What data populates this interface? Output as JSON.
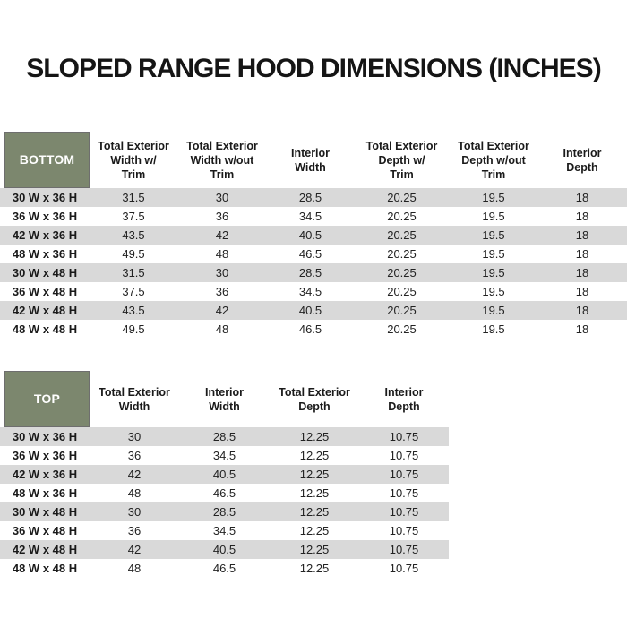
{
  "title": "SLOPED RANGE HOOD DIMENSIONS (INCHES)",
  "colors": {
    "header_green": "#7c876e",
    "header_green_border": "#6e6e6e",
    "header_text": "#ffffff",
    "stripe_gray": "#d9d9d9",
    "row_white": "#ffffff",
    "text_dark": "#1a1a1a"
  },
  "bottom_table": {
    "label": "BOTTOM",
    "columns": [
      "Total Exterior\nWidth w/\nTrim",
      "Total Exterior\nWidth w/out\nTrim",
      "Interior\nWidth",
      "Total Exterior\nDepth w/\nTrim",
      "Total Exterior\nDepth w/out\nTrim",
      "Interior\nDepth"
    ],
    "rows": [
      {
        "label": "30 W x 36 H",
        "values": [
          "31.5",
          "30",
          "28.5",
          "20.25",
          "19.5",
          "18"
        ]
      },
      {
        "label": "36 W x 36 H",
        "values": [
          "37.5",
          "36",
          "34.5",
          "20.25",
          "19.5",
          "18"
        ]
      },
      {
        "label": "42 W x 36 H",
        "values": [
          "43.5",
          "42",
          "40.5",
          "20.25",
          "19.5",
          "18"
        ]
      },
      {
        "label": "48 W x 36 H",
        "values": [
          "49.5",
          "48",
          "46.5",
          "20.25",
          "19.5",
          "18"
        ]
      },
      {
        "label": "30 W x 48 H",
        "values": [
          "31.5",
          "30",
          "28.5",
          "20.25",
          "19.5",
          "18"
        ]
      },
      {
        "label": "36 W x 48 H",
        "values": [
          "37.5",
          "36",
          "34.5",
          "20.25",
          "19.5",
          "18"
        ]
      },
      {
        "label": "42 W x 48 H",
        "values": [
          "43.5",
          "42",
          "40.5",
          "20.25",
          "19.5",
          "18"
        ]
      },
      {
        "label": "48 W x 48 H",
        "values": [
          "49.5",
          "48",
          "46.5",
          "20.25",
          "19.5",
          "18"
        ]
      }
    ]
  },
  "top_table": {
    "label": "TOP",
    "columns": [
      "Total Exterior\nWidth",
      "Interior\nWidth",
      "Total Exterior\nDepth",
      "Interior\nDepth"
    ],
    "rows": [
      {
        "label": "30 W x 36 H",
        "values": [
          "30",
          "28.5",
          "12.25",
          "10.75"
        ]
      },
      {
        "label": "36 W x 36 H",
        "values": [
          "36",
          "34.5",
          "12.25",
          "10.75"
        ]
      },
      {
        "label": "42 W x 36 H",
        "values": [
          "42",
          "40.5",
          "12.25",
          "10.75"
        ]
      },
      {
        "label": "48 W x 36 H",
        "values": [
          "48",
          "46.5",
          "12.25",
          "10.75"
        ]
      },
      {
        "label": "30 W x 48 H",
        "values": [
          "30",
          "28.5",
          "12.25",
          "10.75"
        ]
      },
      {
        "label": "36 W x 48 H",
        "values": [
          "36",
          "34.5",
          "12.25",
          "10.75"
        ]
      },
      {
        "label": "42 W x 48 H",
        "values": [
          "42",
          "40.5",
          "12.25",
          "10.75"
        ]
      },
      {
        "label": "48 W x 48 H",
        "values": [
          "48",
          "46.5",
          "12.25",
          "10.75"
        ]
      }
    ]
  }
}
